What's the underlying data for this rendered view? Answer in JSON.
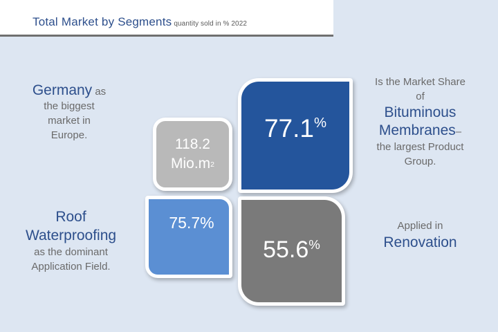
{
  "header": {
    "title": "Total Market by Segments",
    "subtitle": "quantity sold in %  2022"
  },
  "tiles": {
    "germany": {
      "value": "118.2",
      "unit": "Mio.m",
      "unit_sup": "2"
    },
    "bituminous": {
      "value": "77.1",
      "suffix": "%"
    },
    "roof": {
      "value": "75.7%"
    },
    "renovation": {
      "value": "55.6",
      "suffix": "%"
    }
  },
  "labels": {
    "germany": {
      "highlight": "Germany",
      "after_highlight": " as",
      "line2": "the biggest",
      "line3": "market in",
      "line4": "Europe."
    },
    "roof": {
      "line1": "Roof",
      "line2": "Waterproofing",
      "line3": "as the dominant",
      "line4": "Application Field."
    },
    "bituminous": {
      "line1": "Is the Market Share",
      "line2": "of",
      "line3": "Bituminous",
      "line4": "Membranes",
      "line4_suffix": "–",
      "line5": "the  largest Product",
      "line6": "Group."
    },
    "renovation": {
      "line1": "Applied in",
      "line2": "Renovation"
    }
  },
  "colors": {
    "background": "#dde6f2",
    "title": "#2d4f8c",
    "tile_germany": "#b9b9b9",
    "tile_bituminous": "#24559c",
    "tile_roof": "#5b8fd3",
    "tile_renovation": "#7a7a7a"
  }
}
